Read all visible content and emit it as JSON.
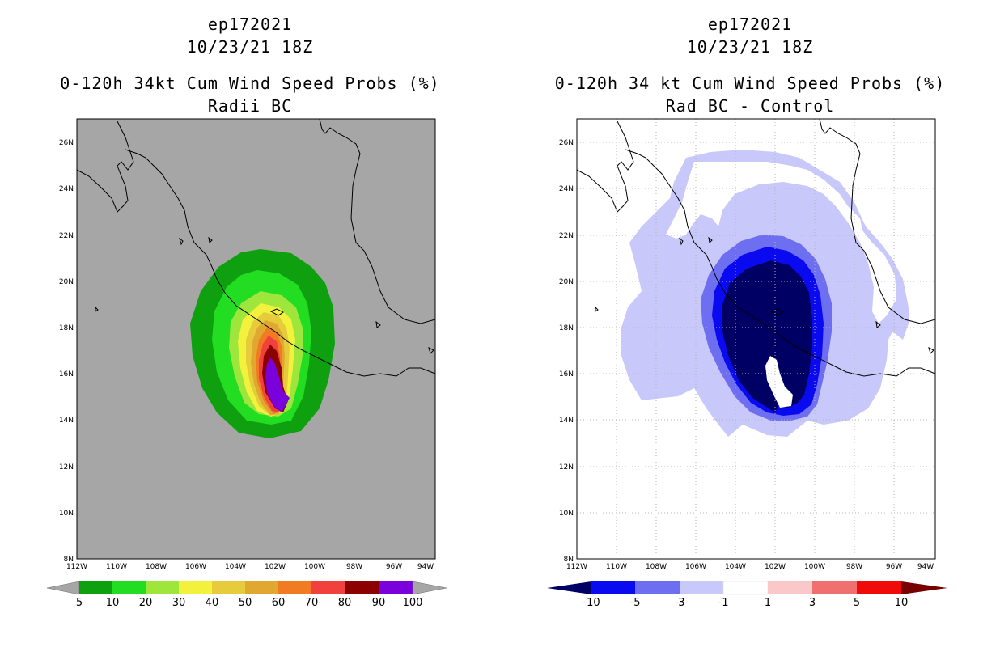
{
  "left": {
    "storm_id": "ep172021",
    "datetime": "10/23/21 18Z",
    "title": "0-120h 34kt Cum Wind Speed Probs (%)",
    "subtitle": "Radii BC",
    "colorbar": {
      "labels": [
        "5",
        "10",
        "20",
        "30",
        "40",
        "50",
        "60",
        "70",
        "80",
        "90",
        "100"
      ],
      "colors": [
        "#a6a6a6",
        "#0ea00e",
        "#22dd22",
        "#9ee63c",
        "#f2f23c",
        "#e6cc3c",
        "#e0a830",
        "#f07b22",
        "#f0413c",
        "#8c0000",
        "#7a00dc",
        "#a6a6a6"
      ]
    }
  },
  "right": {
    "storm_id": "ep172021",
    "datetime": "10/23/21 18Z",
    "title": "0-120h 34 kt Cum Wind Speed Probs (%)",
    "subtitle": "Rad BC - Control",
    "colorbar": {
      "labels": [
        "-10",
        "-5",
        "-3",
        "-1",
        "1",
        "3",
        "5",
        "10"
      ],
      "colors": [
        "#000064",
        "#0a0af0",
        "#6e6ef0",
        "#c8c8fa",
        "#ffffff",
        "#fac8c8",
        "#f07070",
        "#f00a0a",
        "#780000"
      ]
    }
  },
  "axes": {
    "lon_labels": [
      "112W",
      "110W",
      "108W",
      "106W",
      "104W",
      "102W",
      "100W",
      "98W",
      "96W",
      "94W"
    ],
    "lat_labels": [
      "8N",
      "10N",
      "12N",
      "14N",
      "16N",
      "18N",
      "20N",
      "22N",
      "24N",
      "26N"
    ]
  },
  "colors": {
    "background": "#a6a6a6",
    "coast": "#000000",
    "grid": "#b4b4b4"
  }
}
